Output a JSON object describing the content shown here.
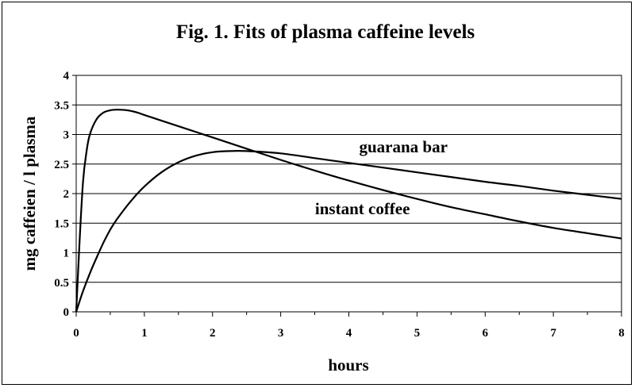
{
  "chart_data": {
    "type": "line",
    "title": "Fig. 1. Fits of plasma caffeine levels",
    "xlabel": "hours",
    "ylabel": "mg caffeien / l plasma",
    "xlim": [
      0,
      8
    ],
    "ylim": [
      0,
      4
    ],
    "xticks": [
      0,
      1,
      2,
      3,
      4,
      5,
      6,
      7,
      8
    ],
    "yticks": [
      "0",
      "0.5",
      "1",
      "1.5",
      "2",
      "2.5",
      "3",
      "3.5",
      "4"
    ],
    "grid": "horizontal",
    "legend": "none",
    "series": [
      {
        "name": "instant coffee",
        "x": [
          0,
          0.05,
          0.1,
          0.15,
          0.2,
          0.3,
          0.4,
          0.5,
          0.6,
          0.75,
          0.9,
          1.0,
          1.5,
          2.0,
          2.5,
          3.0,
          3.5,
          4.0,
          4.5,
          5.0,
          5.5,
          6.0,
          6.5,
          7.0,
          7.5,
          8.0
        ],
        "y": [
          0,
          1.2,
          2.2,
          2.7,
          3.0,
          3.26,
          3.37,
          3.41,
          3.42,
          3.41,
          3.37,
          3.33,
          3.14,
          2.95,
          2.76,
          2.57,
          2.39,
          2.22,
          2.06,
          1.91,
          1.77,
          1.65,
          1.53,
          1.42,
          1.33,
          1.24
        ]
      },
      {
        "name": "guarana bar",
        "x": [
          0,
          0.1,
          0.2,
          0.3,
          0.4,
          0.5,
          0.6,
          0.8,
          1.0,
          1.25,
          1.5,
          1.75,
          2.0,
          2.25,
          2.5,
          3.0,
          3.5,
          4.0,
          4.5,
          5.0,
          5.5,
          6.0,
          6.5,
          7.0,
          7.5,
          8.0
        ],
        "y": [
          0,
          0.35,
          0.65,
          0.92,
          1.17,
          1.39,
          1.57,
          1.87,
          2.12,
          2.36,
          2.53,
          2.64,
          2.7,
          2.72,
          2.72,
          2.68,
          2.6,
          2.52,
          2.44,
          2.36,
          2.28,
          2.2,
          2.13,
          2.05,
          1.98,
          1.91
        ]
      }
    ],
    "annotations": [
      {
        "text": "guarana bar",
        "x": 4.8,
        "y": 2.7
      },
      {
        "text": "instant coffee",
        "x": 4.2,
        "y": 1.65
      }
    ]
  }
}
